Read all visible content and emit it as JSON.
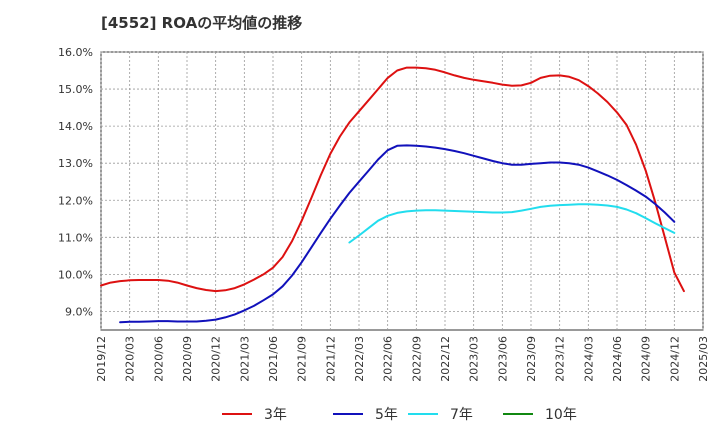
{
  "title": "[4552]  ROAの平均値の推移",
  "chart_data": {
    "type": "line",
    "title": "[4552]  ROAの平均値の推移",
    "xlabel": "",
    "ylabel": "",
    "ylim": [
      8.5,
      16.0
    ],
    "grid": true,
    "legend_position": "bottom",
    "y_ticks": [
      "9.0%",
      "10.0%",
      "11.0%",
      "12.0%",
      "13.0%",
      "14.0%",
      "15.0%",
      "16.0%"
    ],
    "x_ticks": [
      "2019/12",
      "2020/03",
      "2020/06",
      "2020/09",
      "2020/12",
      "2021/03",
      "2021/06",
      "2021/09",
      "2021/12",
      "2022/03",
      "2022/06",
      "2022/09",
      "2022/12",
      "2023/03",
      "2023/06",
      "2023/09",
      "2023/12",
      "2024/03",
      "2024/06",
      "2024/09",
      "2024/12",
      "2025/03"
    ],
    "series": [
      {
        "name": "3年",
        "color": "#dd1111",
        "points": [
          [
            "2019/12",
            9.7
          ],
          [
            "2020/01",
            9.78
          ],
          [
            "2020/02",
            9.82
          ],
          [
            "2020/03",
            9.84
          ],
          [
            "2020/04",
            9.85
          ],
          [
            "2020/05",
            9.85
          ],
          [
            "2020/06",
            9.85
          ],
          [
            "2020/07",
            9.83
          ],
          [
            "2020/08",
            9.78
          ],
          [
            "2020/09",
            9.7
          ],
          [
            "2020/10",
            9.63
          ],
          [
            "2020/11",
            9.58
          ],
          [
            "2020/12",
            9.55
          ],
          [
            "2021/01",
            9.57
          ],
          [
            "2021/02",
            9.63
          ],
          [
            "2021/03",
            9.73
          ],
          [
            "2021/04",
            9.86
          ],
          [
            "2021/05",
            10.0
          ],
          [
            "2021/06",
            10.18
          ],
          [
            "2021/07",
            10.47
          ],
          [
            "2021/08",
            10.9
          ],
          [
            "2021/09",
            11.45
          ],
          [
            "2021/10",
            12.05
          ],
          [
            "2021/11",
            12.68
          ],
          [
            "2021/12",
            13.25
          ],
          [
            "2022/01",
            13.72
          ],
          [
            "2022/02",
            14.1
          ],
          [
            "2022/03",
            14.4
          ],
          [
            "2022/04",
            14.7
          ],
          [
            "2022/05",
            15.0
          ],
          [
            "2022/06",
            15.3
          ],
          [
            "2022/07",
            15.5
          ],
          [
            "2022/08",
            15.58
          ],
          [
            "2022/09",
            15.58
          ],
          [
            "2022/10",
            15.56
          ],
          [
            "2022/11",
            15.52
          ],
          [
            "2022/12",
            15.45
          ],
          [
            "2023/01",
            15.37
          ],
          [
            "2023/02",
            15.3
          ],
          [
            "2023/03",
            15.25
          ],
          [
            "2023/04",
            15.21
          ],
          [
            "2023/05",
            15.17
          ],
          [
            "2023/06",
            15.12
          ],
          [
            "2023/07",
            15.09
          ],
          [
            "2023/08",
            15.1
          ],
          [
            "2023/09",
            15.17
          ],
          [
            "2023/10",
            15.3
          ],
          [
            "2023/11",
            15.36
          ],
          [
            "2023/12",
            15.37
          ],
          [
            "2024/01",
            15.33
          ],
          [
            "2024/02",
            15.24
          ],
          [
            "2024/03",
            15.08
          ],
          [
            "2024/04",
            14.88
          ],
          [
            "2024/05",
            14.65
          ],
          [
            "2024/06",
            14.37
          ],
          [
            "2024/07",
            14.03
          ],
          [
            "2024/08",
            13.5
          ],
          [
            "2024/09",
            12.8
          ],
          [
            "2024/10",
            11.95
          ],
          [
            "2024/11",
            11.0
          ],
          [
            "2024/12",
            10.05
          ],
          [
            "2025/01",
            9.55
          ]
        ]
      },
      {
        "name": "5年",
        "color": "#1111bb",
        "points": [
          [
            "2020/02",
            8.71
          ],
          [
            "2020/03",
            8.72
          ],
          [
            "2020/04",
            8.72
          ],
          [
            "2020/05",
            8.73
          ],
          [
            "2020/06",
            8.74
          ],
          [
            "2020/07",
            8.74
          ],
          [
            "2020/08",
            8.73
          ],
          [
            "2020/09",
            8.73
          ],
          [
            "2020/10",
            8.73
          ],
          [
            "2020/11",
            8.75
          ],
          [
            "2020/12",
            8.78
          ],
          [
            "2021/01",
            8.84
          ],
          [
            "2021/02",
            8.92
          ],
          [
            "2021/03",
            9.03
          ],
          [
            "2021/04",
            9.15
          ],
          [
            "2021/05",
            9.3
          ],
          [
            "2021/06",
            9.46
          ],
          [
            "2021/07",
            9.68
          ],
          [
            "2021/08",
            9.97
          ],
          [
            "2021/09",
            10.33
          ],
          [
            "2021/10",
            10.72
          ],
          [
            "2021/11",
            11.12
          ],
          [
            "2021/12",
            11.5
          ],
          [
            "2022/01",
            11.86
          ],
          [
            "2022/02",
            12.2
          ],
          [
            "2022/03",
            12.5
          ],
          [
            "2022/04",
            12.8
          ],
          [
            "2022/05",
            13.1
          ],
          [
            "2022/06",
            13.35
          ],
          [
            "2022/07",
            13.47
          ],
          [
            "2022/08",
            13.48
          ],
          [
            "2022/09",
            13.47
          ],
          [
            "2022/10",
            13.45
          ],
          [
            "2022/11",
            13.42
          ],
          [
            "2022/12",
            13.38
          ],
          [
            "2023/01",
            13.33
          ],
          [
            "2023/02",
            13.27
          ],
          [
            "2023/03",
            13.2
          ],
          [
            "2023/04",
            13.13
          ],
          [
            "2023/05",
            13.06
          ],
          [
            "2023/06",
            13.0
          ],
          [
            "2023/07",
            12.96
          ],
          [
            "2023/08",
            12.96
          ],
          [
            "2023/09",
            12.98
          ],
          [
            "2023/10",
            13.0
          ],
          [
            "2023/11",
            13.02
          ],
          [
            "2023/12",
            13.02
          ],
          [
            "2024/01",
            13.0
          ],
          [
            "2024/02",
            12.96
          ],
          [
            "2024/03",
            12.88
          ],
          [
            "2024/04",
            12.78
          ],
          [
            "2024/05",
            12.67
          ],
          [
            "2024/06",
            12.55
          ],
          [
            "2024/07",
            12.41
          ],
          [
            "2024/08",
            12.26
          ],
          [
            "2024/09",
            12.1
          ],
          [
            "2024/10",
            11.9
          ],
          [
            "2024/11",
            11.67
          ],
          [
            "2024/12",
            11.42
          ]
        ]
      },
      {
        "name": "7年",
        "color": "#22ddee",
        "points": [
          [
            "2022/02",
            10.86
          ],
          [
            "2022/03",
            11.05
          ],
          [
            "2022/04",
            11.25
          ],
          [
            "2022/05",
            11.45
          ],
          [
            "2022/06",
            11.58
          ],
          [
            "2022/07",
            11.66
          ],
          [
            "2022/08",
            11.7
          ],
          [
            "2022/09",
            11.72
          ],
          [
            "2022/10",
            11.73
          ],
          [
            "2022/11",
            11.73
          ],
          [
            "2022/12",
            11.72
          ],
          [
            "2023/01",
            11.71
          ],
          [
            "2023/02",
            11.7
          ],
          [
            "2023/03",
            11.69
          ],
          [
            "2023/04",
            11.68
          ],
          [
            "2023/05",
            11.67
          ],
          [
            "2023/06",
            11.67
          ],
          [
            "2023/07",
            11.68
          ],
          [
            "2023/08",
            11.72
          ],
          [
            "2023/09",
            11.77
          ],
          [
            "2023/10",
            11.82
          ],
          [
            "2023/11",
            11.85
          ],
          [
            "2023/12",
            11.87
          ],
          [
            "2024/01",
            11.88
          ],
          [
            "2024/02",
            11.89
          ],
          [
            "2024/03",
            11.89
          ],
          [
            "2024/04",
            11.88
          ],
          [
            "2024/05",
            11.86
          ],
          [
            "2024/06",
            11.82
          ],
          [
            "2024/07",
            11.75
          ],
          [
            "2024/08",
            11.65
          ],
          [
            "2024/09",
            11.52
          ],
          [
            "2024/10",
            11.38
          ],
          [
            "2024/11",
            11.25
          ],
          [
            "2024/12",
            11.12
          ]
        ]
      },
      {
        "name": "10年",
        "color": "#118811",
        "points": []
      }
    ]
  }
}
